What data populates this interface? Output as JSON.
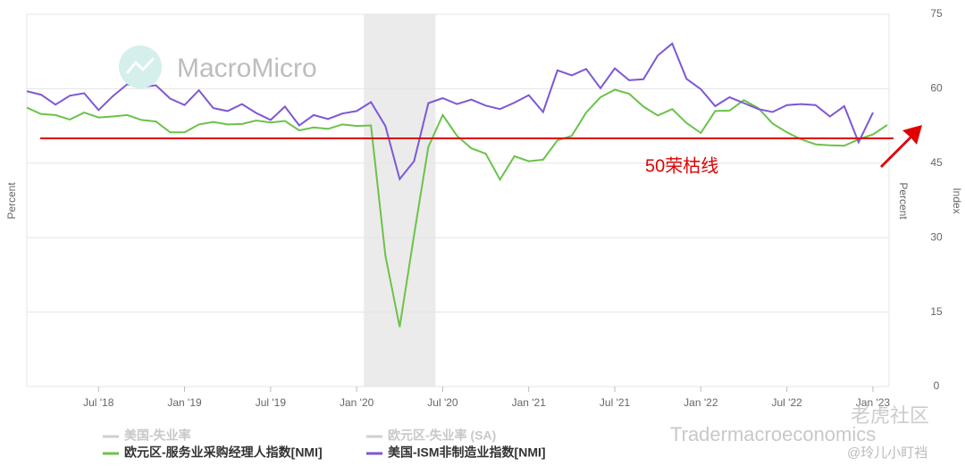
{
  "chart_data": {
    "type": "line",
    "y_label_left": "Percent",
    "y_label_right": "Percent",
    "y2_label": "Index",
    "categories": [
      null,
      null,
      null,
      null,
      null,
      "Jul '18",
      null,
      null,
      null,
      null,
      null,
      "Jan '19",
      null,
      null,
      null,
      null,
      null,
      "Jul '19",
      null,
      null,
      null,
      null,
      null,
      "Jan '20",
      null,
      null,
      null,
      null,
      null,
      "Jul '20",
      null,
      null,
      null,
      null,
      null,
      "Jan '21",
      null,
      null,
      null,
      null,
      null,
      "Jul '21",
      null,
      null,
      null,
      null,
      null,
      "Jan '22",
      null,
      null,
      null,
      null,
      null,
      "Jul '22",
      null,
      null,
      null,
      null,
      null,
      "Jan '23",
      null
    ],
    "series": [
      {
        "name": "欧元区-服务业采购经理人指数[NMI]",
        "color": "#6cc24a",
        "values": [
          56.2,
          54.9,
          54.7,
          53.8,
          55.2,
          54.2,
          54.4,
          54.7,
          53.7,
          53.4,
          51.2,
          51.2,
          52.8,
          53.3,
          52.8,
          52.9,
          53.6,
          53.2,
          53.5,
          51.6,
          52.2,
          51.9,
          52.8,
          52.5,
          52.6,
          26.4,
          12.0,
          30.5,
          48.3,
          54.7,
          50.5,
          48.0,
          46.9,
          41.7,
          46.4,
          45.4,
          45.7,
          49.6,
          50.5,
          55.2,
          58.3,
          59.8,
          59.0,
          56.4,
          54.6,
          55.9,
          53.1,
          51.1,
          55.5,
          55.6,
          57.7,
          56.1,
          53.0,
          51.2,
          49.8,
          48.8,
          48.6,
          48.5,
          49.8,
          50.8,
          52.7
        ]
      },
      {
        "name": "美国-ISM非制造业指数[NMI]",
        "color": "#7e57d6",
        "values": [
          59.5,
          58.8,
          56.8,
          58.6,
          59.1,
          55.7,
          58.5,
          60.9,
          60.3,
          60.7,
          58.0,
          56.7,
          59.7,
          56.1,
          55.5,
          56.9,
          55.1,
          53.7,
          56.4,
          52.6,
          54.7,
          53.9,
          55.0,
          55.5,
          57.3,
          52.5,
          41.8,
          45.4,
          57.1,
          58.1,
          56.9,
          57.8,
          56.6,
          55.9,
          57.2,
          58.7,
          55.3,
          63.7,
          62.7,
          64.0,
          60.1,
          64.1,
          61.7,
          61.9,
          66.7,
          69.1,
          62.0,
          59.9,
          56.5,
          58.3,
          57.1,
          55.9,
          55.3,
          56.7,
          56.9,
          56.7,
          54.4,
          56.5,
          49.2,
          55.2,
          null
        ]
      }
    ],
    "legend_hidden": [
      "美国-失业率",
      "欧元区-失业率 (SA)"
    ],
    "ylim": [
      0,
      75
    ],
    "yticks": [
      0,
      15,
      30,
      45,
      60,
      75
    ],
    "grid": true,
    "shade_categories": [
      24,
      28
    ],
    "reference_line": {
      "value": 50,
      "color": "#e00000"
    },
    "annotation": "50荣枯线",
    "watermarks": [
      "MacroMicro",
      "Tradermacroeconomics",
      "老虎社区",
      "@玲儿小盯裆"
    ]
  }
}
